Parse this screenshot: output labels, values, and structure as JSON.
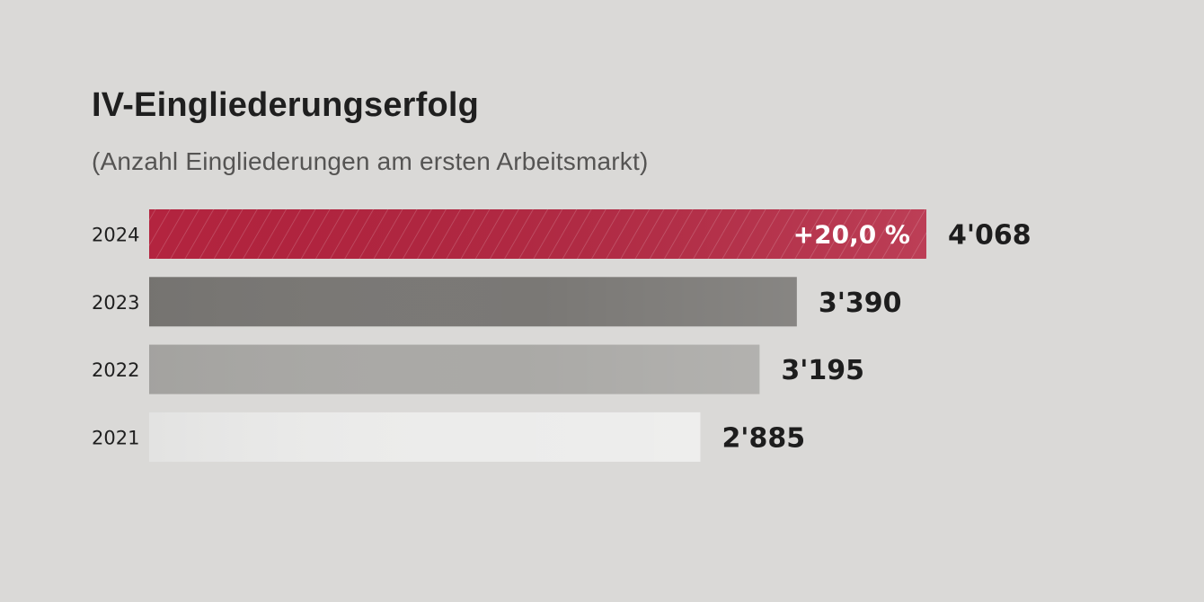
{
  "chart_data": {
    "type": "bar",
    "orientation": "horizontal",
    "title": "IV-Eingliederungserfolg",
    "subtitle": "(Anzahl Eingliederungen am ersten Arbeitsmarkt)",
    "categories": [
      "2024",
      "2023",
      "2022",
      "2021"
    ],
    "values": [
      4068,
      3390,
      3195,
      2885
    ],
    "value_labels": [
      "4'068",
      "3'390",
      "3'195",
      "2'885"
    ],
    "annotations": [
      {
        "category": "2024",
        "text": "+20,0 %"
      }
    ],
    "bar_colors": [
      "#b3243f",
      "#7a7875",
      "#aaa9a6",
      "#ececeb"
    ],
    "highlight_pattern": "diagonal-hatch",
    "grid": false,
    "legend": "none"
  }
}
